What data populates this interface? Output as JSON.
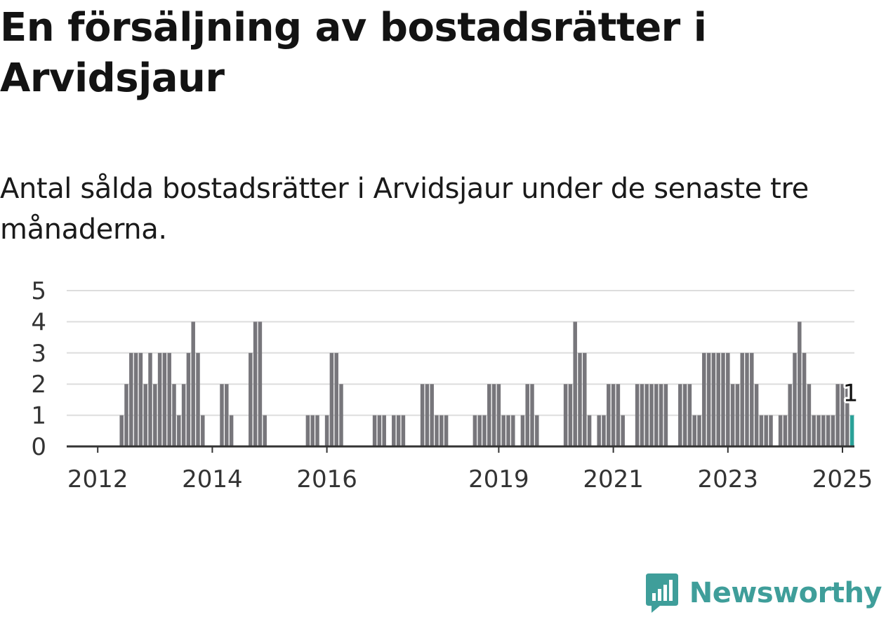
{
  "title": "En försäljning av bostadsrätter i Arvidsjaur",
  "subtitle": "Antal sålda bostadsrätter i Arvidsjaur under de senaste tre månaderna.",
  "brand": {
    "name": "Newsworthy",
    "icon": "newsworthy-logo-icon",
    "color": "#3f9e9a"
  },
  "colors": {
    "bar": "#77767b",
    "highlight": "#2aa198",
    "grid": "#dddddd",
    "axis": "#333333"
  },
  "chart_data": {
    "type": "bar",
    "title": "",
    "xlabel": "",
    "ylabel": "",
    "ylim": [
      0,
      5
    ],
    "yticks": [
      0,
      1,
      2,
      3,
      4,
      5
    ],
    "x_start": "2011-07",
    "x_end": "2025-03",
    "x_ticks": [
      {
        "label": "2012",
        "date": "2012-01"
      },
      {
        "label": "2014",
        "date": "2014-01"
      },
      {
        "label": "2016",
        "date": "2016-01"
      },
      {
        "label": "2019",
        "date": "2019-01"
      },
      {
        "label": "2021",
        "date": "2021-01"
      },
      {
        "label": "2023",
        "date": "2023-01"
      },
      {
        "label": "2025",
        "date": "2025-01"
      }
    ],
    "grid": true,
    "highlight": {
      "month": "2025-03",
      "value": 1,
      "label": "1"
    },
    "series": [
      {
        "values": [
          [
            "2012-06",
            1
          ],
          [
            "2012-07",
            2
          ],
          [
            "2012-08",
            3
          ],
          [
            "2012-09",
            3
          ],
          [
            "2012-10",
            3
          ],
          [
            "2012-11",
            2
          ],
          [
            "2012-12",
            3
          ],
          [
            "2013-01",
            2
          ],
          [
            "2013-02",
            3
          ],
          [
            "2013-03",
            3
          ],
          [
            "2013-04",
            3
          ],
          [
            "2013-05",
            2
          ],
          [
            "2013-06",
            1
          ],
          [
            "2013-07",
            2
          ],
          [
            "2013-08",
            3
          ],
          [
            "2013-09",
            4
          ],
          [
            "2013-10",
            3
          ],
          [
            "2013-11",
            1
          ],
          [
            "2014-03",
            2
          ],
          [
            "2014-04",
            2
          ],
          [
            "2014-05",
            1
          ],
          [
            "2014-09",
            3
          ],
          [
            "2014-10",
            4
          ],
          [
            "2014-11",
            4
          ],
          [
            "2014-12",
            1
          ],
          [
            "2015-09",
            1
          ],
          [
            "2015-10",
            1
          ],
          [
            "2015-11",
            1
          ],
          [
            "2016-01",
            1
          ],
          [
            "2016-02",
            3
          ],
          [
            "2016-03",
            3
          ],
          [
            "2016-04",
            2
          ],
          [
            "2016-11",
            1
          ],
          [
            "2016-12",
            1
          ],
          [
            "2017-01",
            1
          ],
          [
            "2017-03",
            1
          ],
          [
            "2017-04",
            1
          ],
          [
            "2017-05",
            1
          ],
          [
            "2017-09",
            2
          ],
          [
            "2017-10",
            2
          ],
          [
            "2017-11",
            2
          ],
          [
            "2017-12",
            1
          ],
          [
            "2018-01",
            1
          ],
          [
            "2018-02",
            1
          ],
          [
            "2018-08",
            1
          ],
          [
            "2018-09",
            1
          ],
          [
            "2018-10",
            1
          ],
          [
            "2018-11",
            2
          ],
          [
            "2018-12",
            2
          ],
          [
            "2019-01",
            2
          ],
          [
            "2019-02",
            1
          ],
          [
            "2019-03",
            1
          ],
          [
            "2019-04",
            1
          ],
          [
            "2019-06",
            1
          ],
          [
            "2019-07",
            2
          ],
          [
            "2019-08",
            2
          ],
          [
            "2019-09",
            1
          ],
          [
            "2020-03",
            2
          ],
          [
            "2020-04",
            2
          ],
          [
            "2020-05",
            4
          ],
          [
            "2020-06",
            3
          ],
          [
            "2020-07",
            3
          ],
          [
            "2020-08",
            1
          ],
          [
            "2020-10",
            1
          ],
          [
            "2020-11",
            1
          ],
          [
            "2020-12",
            2
          ],
          [
            "2021-01",
            2
          ],
          [
            "2021-02",
            2
          ],
          [
            "2021-03",
            1
          ],
          [
            "2021-06",
            2
          ],
          [
            "2021-07",
            2
          ],
          [
            "2021-08",
            2
          ],
          [
            "2021-09",
            2
          ],
          [
            "2021-10",
            2
          ],
          [
            "2021-11",
            2
          ],
          [
            "2021-12",
            2
          ],
          [
            "2022-03",
            2
          ],
          [
            "2022-04",
            2
          ],
          [
            "2022-05",
            2
          ],
          [
            "2022-06",
            1
          ],
          [
            "2022-07",
            1
          ],
          [
            "2022-08",
            3
          ],
          [
            "2022-09",
            3
          ],
          [
            "2022-10",
            3
          ],
          [
            "2022-11",
            3
          ],
          [
            "2022-12",
            3
          ],
          [
            "2023-01",
            3
          ],
          [
            "2023-02",
            2
          ],
          [
            "2023-03",
            2
          ],
          [
            "2023-04",
            3
          ],
          [
            "2023-05",
            3
          ],
          [
            "2023-06",
            3
          ],
          [
            "2023-07",
            2
          ],
          [
            "2023-08",
            1
          ],
          [
            "2023-09",
            1
          ],
          [
            "2023-10",
            1
          ],
          [
            "2023-12",
            1
          ],
          [
            "2024-01",
            1
          ],
          [
            "2024-02",
            2
          ],
          [
            "2024-03",
            3
          ],
          [
            "2024-04",
            4
          ],
          [
            "2024-05",
            3
          ],
          [
            "2024-06",
            2
          ],
          [
            "2024-07",
            1
          ],
          [
            "2024-08",
            1
          ],
          [
            "2024-09",
            1
          ],
          [
            "2024-10",
            1
          ],
          [
            "2024-11",
            1
          ],
          [
            "2024-12",
            2
          ],
          [
            "2025-01",
            2
          ],
          [
            "2025-02",
            2
          ],
          [
            "2025-03",
            1
          ]
        ]
      }
    ]
  }
}
